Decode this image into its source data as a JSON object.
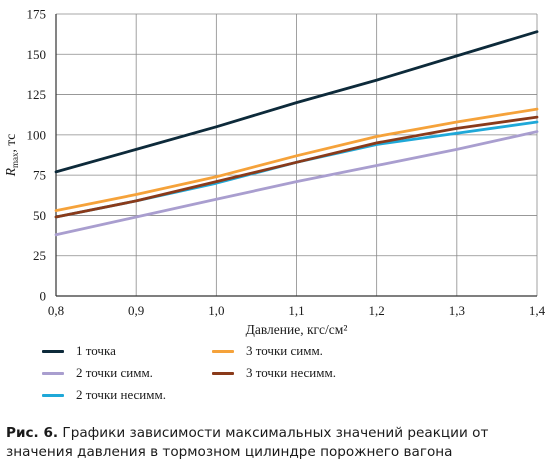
{
  "chart_data": {
    "type": "line",
    "xlabel": "Давление, кгс/см²",
    "ylabel_main": "R",
    "ylabel_sub": "max",
    "ylabel_unit": ", тс",
    "xlim": [
      0.8,
      1.4
    ],
    "ylim": [
      0,
      175
    ],
    "x_ticks": [
      0.8,
      0.9,
      1.0,
      1.1,
      1.2,
      1.3,
      1.4
    ],
    "x_tick_labels": [
      "0,8",
      "0,9",
      "1,0",
      "1,1",
      "1,2",
      "1,3",
      "1,4"
    ],
    "y_ticks": [
      0,
      25,
      50,
      75,
      100,
      125,
      150,
      175
    ],
    "grid": true,
    "legend_position": "bottom",
    "x": [
      0.8,
      0.9,
      1.0,
      1.1,
      1.2,
      1.3,
      1.4
    ],
    "series": [
      {
        "name": "1 точка",
        "color": "#0d2a3a",
        "values": [
          77,
          91,
          105,
          120,
          134,
          149,
          164
        ]
      },
      {
        "name": "2 точки симм.",
        "color": "#a99ecf",
        "values": [
          38,
          49,
          60,
          71,
          81,
          91,
          102
        ]
      },
      {
        "name": "2 точки несимм.",
        "color": "#1fa8d8",
        "values": [
          49,
          59,
          70,
          83,
          94,
          101,
          108
        ]
      },
      {
        "name": "3 точки симм.",
        "color": "#f5a23a",
        "values": [
          53,
          63,
          74,
          87,
          99,
          108,
          116
        ]
      },
      {
        "name": "3 точки несимм.",
        "color": "#8a3a1a",
        "values": [
          49,
          59,
          71,
          83,
          95,
          104,
          111
        ]
      }
    ]
  },
  "legend_items": [
    {
      "label": "1 точка",
      "color": "#0d2a3a"
    },
    {
      "label": "3 точки симм.",
      "color": "#f5a23a"
    },
    {
      "label": "2 точки симм.",
      "color": "#a99ecf"
    },
    {
      "label": "3 точки несимм.",
      "color": "#8a3a1a"
    },
    {
      "label": "2 точки несимм.",
      "color": "#1fa8d8"
    }
  ],
  "caption": {
    "prefix": "Рис. 6.",
    "line1": " Графики зависимости максимальных значений реакции от",
    "line2": "значения давления в тормозном цилиндре порожнего вагона"
  }
}
